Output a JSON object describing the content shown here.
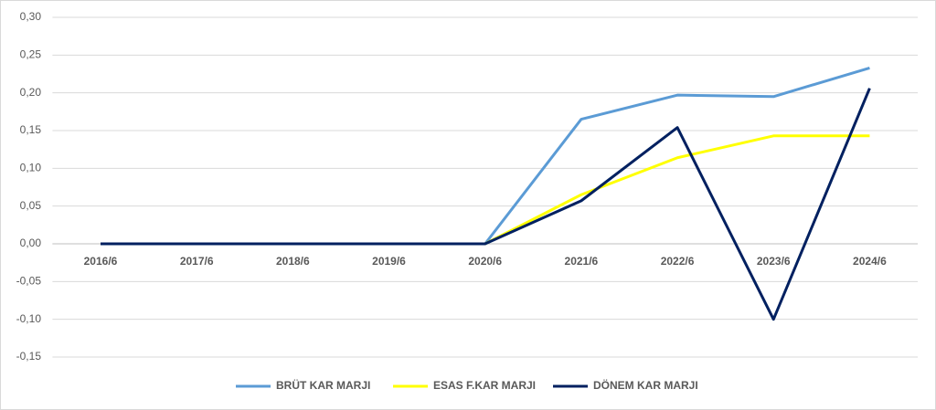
{
  "chart_data": {
    "type": "line",
    "categories": [
      "2016/6",
      "2017/6",
      "2018/6",
      "2019/6",
      "2020/6",
      "2021/6",
      "2022/6",
      "2023/6",
      "2024/6"
    ],
    "series": [
      {
        "name": "BRÜT KAR MARJI",
        "color": "#5b9bd5",
        "values": [
          0,
          0,
          0,
          0,
          0,
          0.165,
          0.197,
          0.195,
          0.233
        ]
      },
      {
        "name": "ESAS F.KAR MARJI",
        "color": "#ffff00",
        "values": [
          0,
          0,
          0,
          0,
          0,
          0.065,
          0.114,
          0.143,
          0.143
        ]
      },
      {
        "name": "DÖNEM KAR MARJI",
        "color": "#002060",
        "values": [
          0,
          0,
          0,
          0,
          0,
          0.057,
          0.154,
          -0.1,
          0.206
        ]
      }
    ],
    "ylim": [
      -0.15,
      0.3
    ],
    "yticks": [
      {
        "value": -0.15,
        "label": "-0,15"
      },
      {
        "value": -0.1,
        "label": "-0,10"
      },
      {
        "value": -0.05,
        "label": "-0,05"
      },
      {
        "value": 0,
        "label": "0,00"
      },
      {
        "value": 0.05,
        "label": "0,05"
      },
      {
        "value": 0.1,
        "label": "0,10"
      },
      {
        "value": 0.15,
        "label": "0,15"
      },
      {
        "value": 0.2,
        "label": "0,20"
      },
      {
        "value": 0.25,
        "label": "0,25"
      },
      {
        "value": 0.3,
        "label": "0,30"
      }
    ],
    "grid": true,
    "legend": "bottom"
  }
}
